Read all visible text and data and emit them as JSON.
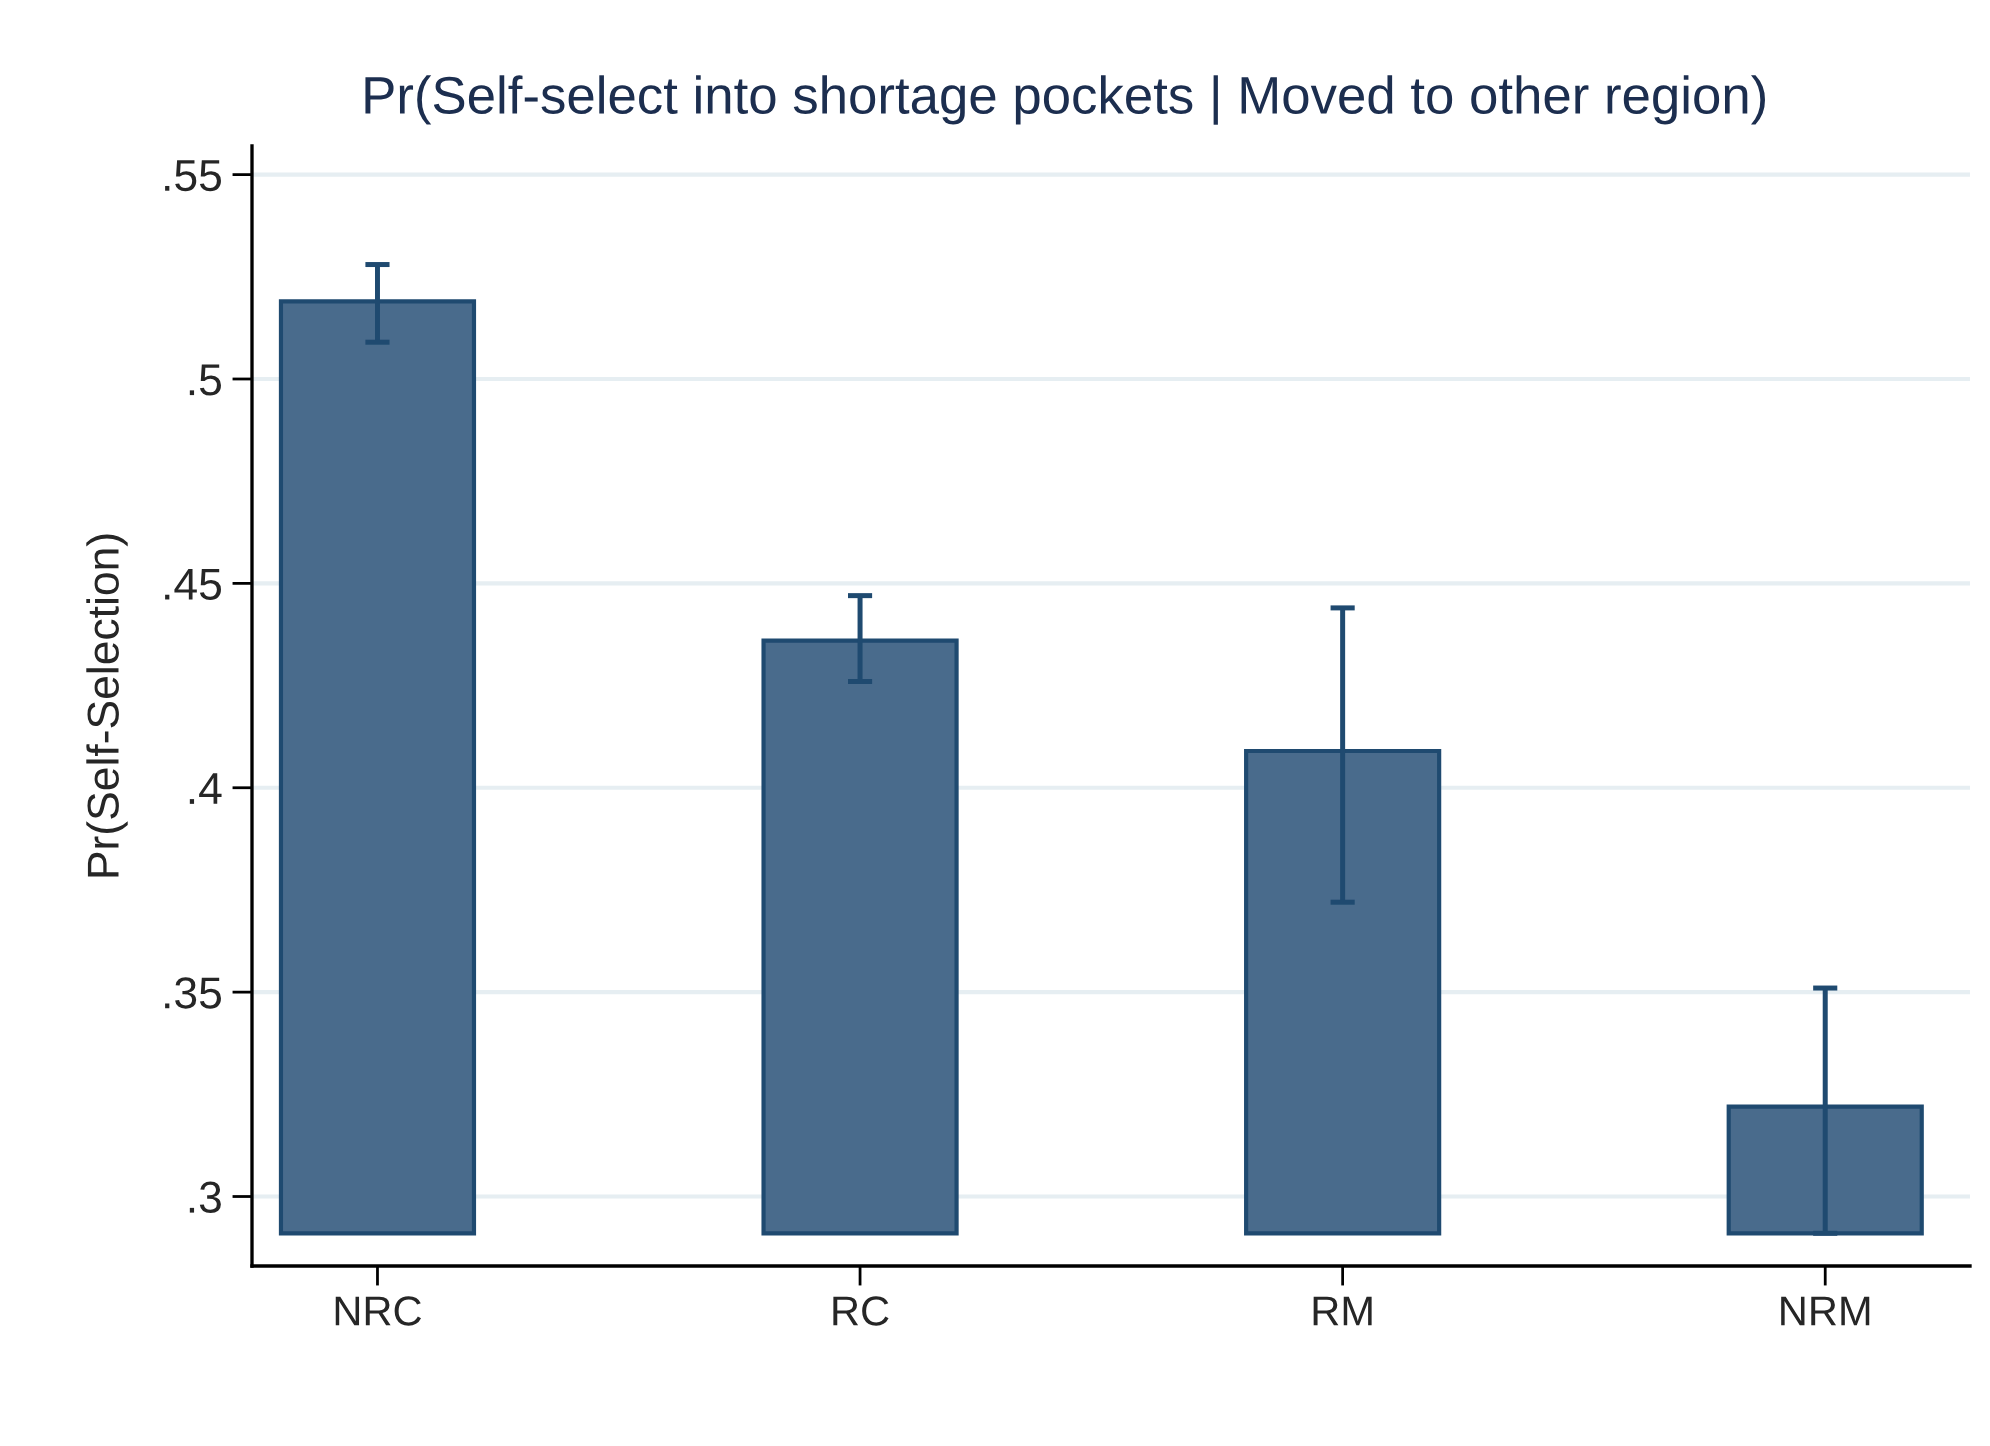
{
  "chart_data": {
    "type": "bar",
    "title": "Pr(Self-select into shortage pockets | Moved to other region)",
    "ylabel": "Pr(Self-Selection)",
    "categories": [
      "NRC",
      "RC",
      "RM",
      "NRM"
    ],
    "base": [
      0.291,
      0.291,
      0.291,
      0.291
    ],
    "values": [
      0.228,
      0.145,
      0.118,
      0.031
    ],
    "errors": [
      [
        0.509,
        0.528
      ],
      [
        0.426,
        0.447
      ],
      [
        0.372,
        0.444
      ],
      [
        0.291,
        0.351
      ]
    ],
    "color": "#496b8c",
    "ylim": [
      0.283,
      0.557
    ],
    "yticks": [
      {
        "value": 0.3,
        "label": ".3"
      },
      {
        "value": 0.35,
        "label": ".35"
      },
      {
        "value": 0.4,
        "label": ".4"
      },
      {
        "value": 0.45,
        "label": ".45"
      },
      {
        "value": 0.5,
        "label": ".5"
      },
      {
        "value": 0.55,
        "label": ".55"
      }
    ],
    "grid": "y",
    "legend": false
  }
}
